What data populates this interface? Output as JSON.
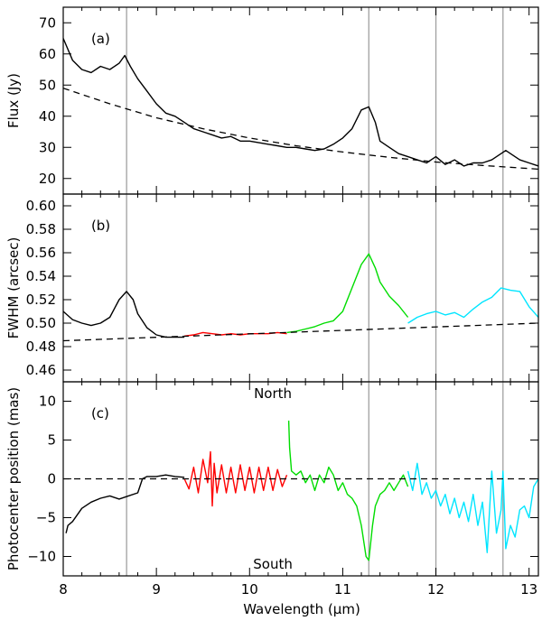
{
  "chart_data": {
    "type": "line",
    "xlabel": "Wavelength (μm)",
    "xlim": [
      8.0,
      13.1
    ],
    "xticks": [
      8,
      9,
      10,
      11,
      12,
      13
    ],
    "vlines": [
      8.68,
      11.28,
      12.0,
      12.72
    ],
    "panels": [
      {
        "label": "(a)",
        "ylabel": "Flux (Jy)",
        "ylim": [
          15,
          75
        ],
        "yticks": [
          20,
          30,
          40,
          50,
          60,
          70
        ],
        "series": [
          {
            "style": "solid",
            "color": "#000000",
            "x": [
              8.0,
              8.1,
              8.2,
              8.3,
              8.4,
              8.5,
              8.6,
              8.66,
              8.72,
              8.8,
              8.9,
              9.0,
              9.1,
              9.2,
              9.3,
              9.4,
              9.5,
              9.6,
              9.7,
              9.8,
              9.9,
              10.0,
              10.1,
              10.2,
              10.3,
              10.4,
              10.5,
              10.6,
              10.7,
              10.8,
              10.9,
              11.0,
              11.1,
              11.2,
              11.28,
              11.35,
              11.4,
              11.5,
              11.6,
              11.7,
              11.8,
              11.9,
              12.0,
              12.1,
              12.2,
              12.3,
              12.4,
              12.5,
              12.6,
              12.7,
              12.75,
              12.8,
              12.9,
              13.0,
              13.1
            ],
            "y": [
              65,
              58,
              55,
              54,
              56,
              55,
              57,
              59.5,
              56,
              52,
              48,
              44,
              41,
              40,
              38,
              36,
              35,
              34,
              33,
              33.5,
              32,
              32,
              31.5,
              31,
              30.5,
              30,
              30,
              29.5,
              29,
              29.5,
              31,
              33,
              36,
              42,
              43,
              38,
              32,
              30,
              28,
              27,
              26,
              25,
              27,
              24.5,
              26,
              24,
              25,
              25,
              26,
              28,
              29,
              28,
              26,
              25,
              24
            ]
          },
          {
            "style": "dashed",
            "color": "#000000",
            "x": [
              8.0,
              8.5,
              9.0,
              9.5,
              10.0,
              10.5,
              11.0,
              11.5,
              12.0,
              12.5,
              13.0,
              13.1
            ],
            "y": [
              49,
              44,
              39.5,
              36,
              33,
              30.5,
              28.5,
              26.8,
              25.3,
              24.2,
              23.2,
              23
            ]
          }
        ]
      },
      {
        "label": "(b)",
        "ylabel": "FWHM (arcsec)",
        "ylim": [
          0.45,
          0.61
        ],
        "yticks": [
          0.46,
          0.48,
          0.5,
          0.52,
          0.54,
          0.56,
          0.58,
          0.6
        ],
        "tick_labels": [
          "0.46",
          "0.48",
          "0.50",
          "0.52",
          "0.54",
          "0.56",
          "0.58",
          "0.60"
        ],
        "series": [
          {
            "style": "solid",
            "color": "#000000",
            "x": [
              8.0,
              8.1,
              8.2,
              8.3,
              8.4,
              8.5,
              8.6,
              8.68,
              8.75,
              8.8,
              8.9,
              9.0,
              9.1,
              9.2,
              9.3
            ],
            "y": [
              0.51,
              0.503,
              0.5,
              0.498,
              0.5,
              0.505,
              0.52,
              0.527,
              0.52,
              0.508,
              0.496,
              0.49,
              0.488,
              0.488,
              0.488
            ]
          },
          {
            "style": "solid",
            "color": "#ff0000",
            "x": [
              9.3,
              9.4,
              9.5,
              9.6,
              9.7,
              9.8,
              9.9,
              10.0,
              10.1,
              10.2,
              10.3,
              10.4
            ],
            "y": [
              0.489,
              0.49,
              0.492,
              0.491,
              0.49,
              0.491,
              0.49,
              0.491,
              0.491,
              0.491,
              0.492,
              0.491
            ]
          },
          {
            "style": "solid",
            "color": "#00dd00",
            "x": [
              10.4,
              10.5,
              10.6,
              10.7,
              10.8,
              10.9,
              11.0,
              11.1,
              11.2,
              11.28,
              11.35,
              11.4,
              11.5,
              11.6,
              11.7
            ],
            "y": [
              0.492,
              0.493,
              0.495,
              0.497,
              0.5,
              0.502,
              0.51,
              0.53,
              0.55,
              0.559,
              0.547,
              0.535,
              0.523,
              0.515,
              0.505
            ]
          },
          {
            "style": "solid",
            "color": "#00e5ff",
            "x": [
              11.7,
              11.8,
              11.9,
              12.0,
              12.1,
              12.2,
              12.3,
              12.4,
              12.5,
              12.6,
              12.7,
              12.8,
              12.9,
              13.0,
              13.1
            ],
            "y": [
              0.5,
              0.505,
              0.508,
              0.51,
              0.507,
              0.509,
              0.505,
              0.512,
              0.518,
              0.522,
              0.53,
              0.528,
              0.527,
              0.514,
              0.505
            ]
          },
          {
            "style": "dashed",
            "color": "#000000",
            "x": [
              8.0,
              13.1
            ],
            "y": [
              0.485,
              0.5
            ]
          }
        ]
      },
      {
        "label": "(c)",
        "ylabel": "Photocenter position (mas)",
        "ylim": [
          -12.5,
          12.5
        ],
        "yticks": [
          -10,
          -5,
          0,
          5,
          10
        ],
        "annotations": [
          {
            "text": "North",
            "x": 10.25,
            "y": 11
          },
          {
            "text": "South",
            "x": 10.25,
            "y": -11
          }
        ],
        "series": [
          {
            "style": "solid",
            "color": "#000000",
            "x": [
              8.03,
              8.05,
              8.1,
              8.2,
              8.3,
              8.4,
              8.5,
              8.6,
              8.7,
              8.8,
              8.85,
              8.9,
              9.0,
              9.1,
              9.2,
              9.3
            ],
            "y": [
              -7,
              -6,
              -5.5,
              -3.8,
              -3,
              -2.5,
              -2.2,
              -2.6,
              -2.2,
              -1.8,
              0,
              0.3,
              0.3,
              0.5,
              0.3,
              0.2
            ]
          },
          {
            "style": "solid",
            "color": "#ff0000",
            "x": [
              9.3,
              9.35,
              9.4,
              9.45,
              9.5,
              9.55,
              9.58,
              9.6,
              9.62,
              9.65,
              9.7,
              9.75,
              9.8,
              9.85,
              9.9,
              9.95,
              10.0,
              10.05,
              10.1,
              10.15,
              10.2,
              10.25,
              10.3,
              10.35,
              10.4
            ],
            "y": [
              0,
              -1.3,
              1.5,
              -1.8,
              2.5,
              -0.5,
              3.5,
              -3.5,
              2,
              -1.8,
              1.8,
              -1.8,
              1.5,
              -1.8,
              1.8,
              -1.5,
              1.5,
              -1.8,
              1.5,
              -1.5,
              1.5,
              -1.5,
              1.2,
              -1,
              0.5
            ]
          },
          {
            "style": "solid",
            "color": "#00dd00",
            "x": [
              10.42,
              10.43,
              10.45,
              10.5,
              10.55,
              10.6,
              10.65,
              10.7,
              10.75,
              10.8,
              10.85,
              10.9,
              10.95,
              11.0,
              11.05,
              11.1,
              11.15,
              11.2,
              11.25,
              11.28,
              11.32,
              11.35,
              11.4,
              11.45,
              11.5,
              11.55,
              11.6,
              11.65,
              11.7
            ],
            "y": [
              7.5,
              4,
              1,
              0.5,
              1,
              -0.5,
              0.5,
              -1.5,
              0.5,
              -0.5,
              1.5,
              0.5,
              -1.5,
              -0.5,
              -2,
              -2.5,
              -3.5,
              -6,
              -10,
              -10.5,
              -6,
              -3.5,
              -2,
              -1.5,
              -0.5,
              -1.5,
              -0.5,
              0.5,
              -1
            ]
          },
          {
            "style": "solid",
            "color": "#00e5ff",
            "x": [
              11.7,
              11.75,
              11.8,
              11.85,
              11.9,
              11.95,
              12.0,
              12.05,
              12.1,
              12.15,
              12.2,
              12.25,
              12.3,
              12.35,
              12.4,
              12.45,
              12.5,
              12.55,
              12.6,
              12.65,
              12.7,
              12.72,
              12.75,
              12.8,
              12.85,
              12.9,
              12.95,
              13.0,
              13.05,
              13.1
            ],
            "y": [
              1,
              -1.5,
              2,
              -2,
              -0.5,
              -2.5,
              -1.5,
              -3.5,
              -2,
              -4.5,
              -2.5,
              -5,
              -3,
              -5.5,
              -2,
              -6,
              -3,
              -9.5,
              1,
              -7,
              -4,
              1,
              -9,
              -6,
              -7.5,
              -4,
              -3.5,
              -5,
              -1,
              0
            ]
          },
          {
            "style": "dashed",
            "color": "#000000",
            "x": [
              8.0,
              13.1
            ],
            "y": [
              0,
              0
            ]
          }
        ]
      }
    ]
  }
}
